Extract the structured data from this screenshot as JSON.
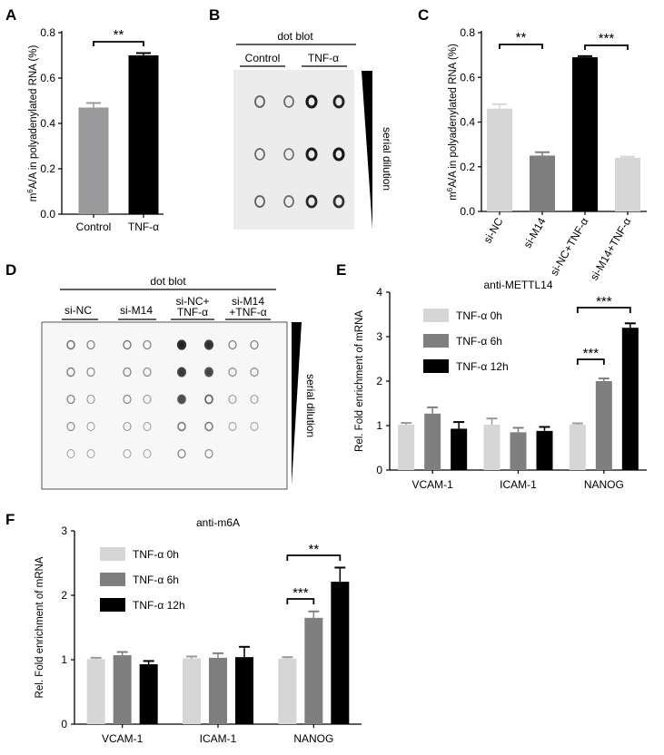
{
  "panel_letters": {
    "a": "A",
    "b": "B",
    "c": "C",
    "d": "D",
    "e": "E",
    "f": "F"
  },
  "colors": {
    "black": "#000000",
    "dark_gray": "#7f7f7f",
    "mid_gray": "#9a9a9c",
    "light_gray": "#d6d6d6",
    "blot_bg": "#ececec"
  },
  "panel_b": {
    "header": "dot blot",
    "groups": [
      "Control",
      "TNF-α"
    ],
    "side_label": "serial dilution"
  },
  "panel_d": {
    "header": "dot blot",
    "groups": [
      "si-NC",
      "si-M14",
      "si-NC+",
      "TNF-α",
      "si-M14",
      "+TNF-α"
    ],
    "side_label": "serial dilution"
  },
  "chart_data": [
    {
      "id": "A",
      "type": "bar",
      "title": "",
      "ylabel": "m6A/A in polyadenylated RNA (%)",
      "ylabel_parts": {
        "pre": "m",
        "sup": "6",
        "post": "A/A in polyadenylated RNA (%)"
      },
      "ylim": [
        0,
        0.8
      ],
      "yticks": [
        "0.0",
        "0.2",
        "0.4",
        "0.6",
        "0.8"
      ],
      "categories": [
        "Control",
        "TNF-α"
      ],
      "values": [
        0.47,
        0.7
      ],
      "errors": [
        0.02,
        0.01
      ],
      "colors": [
        "#9a9a9c",
        "#000000"
      ],
      "significance": [
        {
          "from": 0,
          "to": 1,
          "label": "**"
        }
      ]
    },
    {
      "id": "C",
      "type": "bar",
      "title": "",
      "ylabel": "m6A/A in polyadenylated RNA (%)",
      "ylabel_parts": {
        "pre": "m",
        "sup": "6",
        "post": "A/A in polyadenylated RNA (%)"
      },
      "ylim": [
        0,
        0.8
      ],
      "yticks": [
        "0.0",
        "0.2",
        "0.4",
        "0.6",
        "0.8"
      ],
      "categories": [
        "si-NC",
        "si-M14",
        "si-NC+TNF-α",
        "si-M14+TNF-α"
      ],
      "values": [
        0.46,
        0.25,
        0.69,
        0.24
      ],
      "errors": [
        0.02,
        0.015,
        0.005,
        0.005
      ],
      "colors": [
        "#d6d6d6",
        "#7f7f7f",
        "#000000",
        "#d6d6d6"
      ],
      "significance": [
        {
          "from": 0,
          "to": 1,
          "label": "**"
        },
        {
          "from": 2,
          "to": 3,
          "label": "***"
        }
      ]
    },
    {
      "id": "E",
      "type": "bar",
      "title": "anti-METTL14",
      "ylabel": "Rel. Fold enrichment of mRNA",
      "ylim": [
        0,
        4
      ],
      "yticks": [
        "0",
        "1",
        "2",
        "3",
        "4"
      ],
      "categories": [
        "VCAM-1",
        "ICAM-1",
        "NANOG"
      ],
      "series": [
        {
          "name": "TNF-α 0h",
          "color": "#d6d6d6",
          "values": [
            1.02,
            1.02,
            1.02
          ],
          "errors": [
            0.04,
            0.14,
            0.03
          ]
        },
        {
          "name": "TNF-α 6h",
          "color": "#7f7f7f",
          "values": [
            1.27,
            0.85,
            2.0
          ],
          "errors": [
            0.14,
            0.1,
            0.06
          ]
        },
        {
          "name": "TNF-α 12h",
          "color": "#000000",
          "values": [
            0.93,
            0.88,
            3.2
          ],
          "errors": [
            0.15,
            0.09,
            0.1
          ]
        }
      ],
      "significance": [
        {
          "group": 2,
          "from": 0,
          "to": 1,
          "label": "***"
        },
        {
          "group": 2,
          "from": 0,
          "to": 2,
          "label": "***"
        }
      ]
    },
    {
      "id": "F",
      "type": "bar",
      "title": "anti-m6A",
      "ylabel": "Rel. Fold enrichment of mRNA",
      "ylim": [
        0,
        3
      ],
      "yticks": [
        "0",
        "1",
        "2",
        "3"
      ],
      "categories": [
        "VCAM-1",
        "ICAM-1",
        "NANOG"
      ],
      "series": [
        {
          "name": "TNF-α 0h",
          "color": "#d6d6d6",
          "values": [
            1.01,
            1.02,
            1.02
          ],
          "errors": [
            0.02,
            0.03,
            0.02
          ]
        },
        {
          "name": "TNF-α 6h",
          "color": "#7f7f7f",
          "values": [
            1.07,
            1.03,
            1.65
          ],
          "errors": [
            0.05,
            0.07,
            0.1
          ]
        },
        {
          "name": "TNF-α 12h",
          "color": "#000000",
          "values": [
            0.93,
            1.04,
            2.21
          ],
          "errors": [
            0.05,
            0.16,
            0.22
          ]
        }
      ],
      "significance": [
        {
          "group": 2,
          "from": 0,
          "to": 1,
          "label": "***"
        },
        {
          "group": 2,
          "from": 0,
          "to": 2,
          "label": "**"
        }
      ]
    }
  ]
}
